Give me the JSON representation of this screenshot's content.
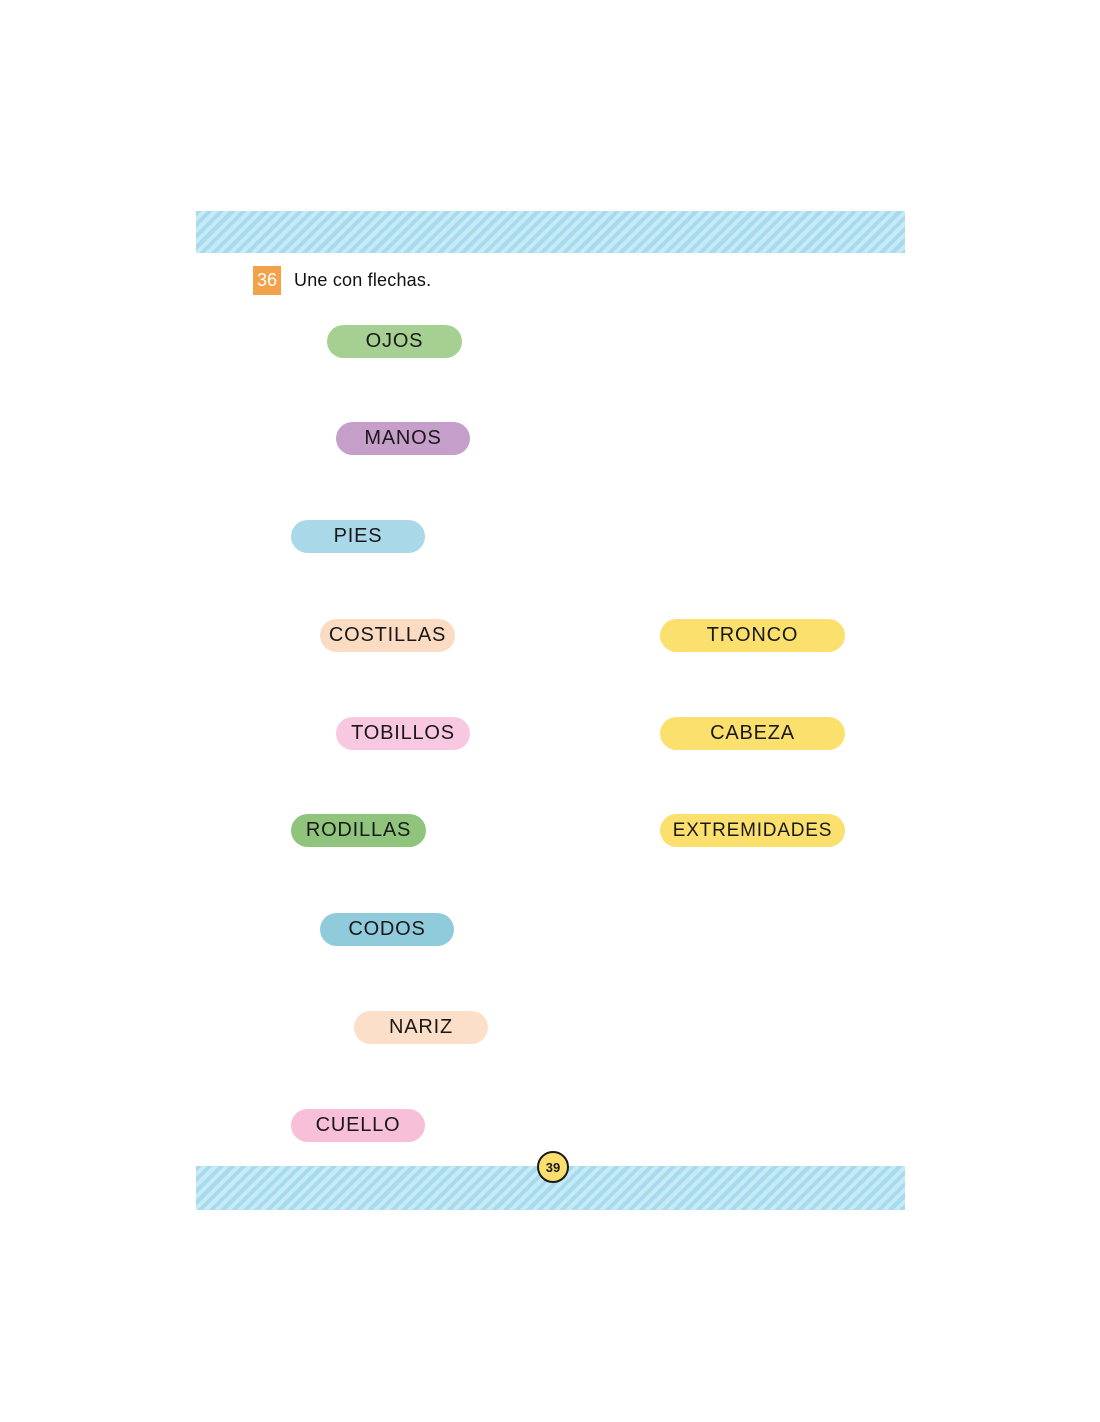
{
  "exercise": {
    "number": "36",
    "instruction": "Une con flechas.",
    "badge_color": "#f2a24b"
  },
  "left_column": [
    {
      "label": "OJOS",
      "color": "#a6d092"
    },
    {
      "label": "MANOS",
      "color": "#c59fc9"
    },
    {
      "label": "PIES",
      "color": "#a9d9e9"
    },
    {
      "label": "COSTILLAS",
      "color": "#fbdcc3"
    },
    {
      "label": "TOBILLOS",
      "color": "#f8c8e0"
    },
    {
      "label": "RODILLAS",
      "color": "#90c47c"
    },
    {
      "label": "CODOS",
      "color": "#8fcbdb"
    },
    {
      "label": "NARIZ",
      "color": "#fcdfc8"
    },
    {
      "label": "CUELLO",
      "color": "#f8bfd8"
    }
  ],
  "right_column": [
    {
      "label": "TRONCO",
      "color": "#fbe06d"
    },
    {
      "label": "CABEZA",
      "color": "#fbe06d"
    },
    {
      "label": "EXTREMIDADES",
      "color": "#fbe06d"
    }
  ],
  "footer": {
    "page_number": "39",
    "circle_color": "#fbdf6e"
  },
  "banner": {
    "stripe_dark": "#a6dbee",
    "stripe_light": "#c8eaf6"
  }
}
